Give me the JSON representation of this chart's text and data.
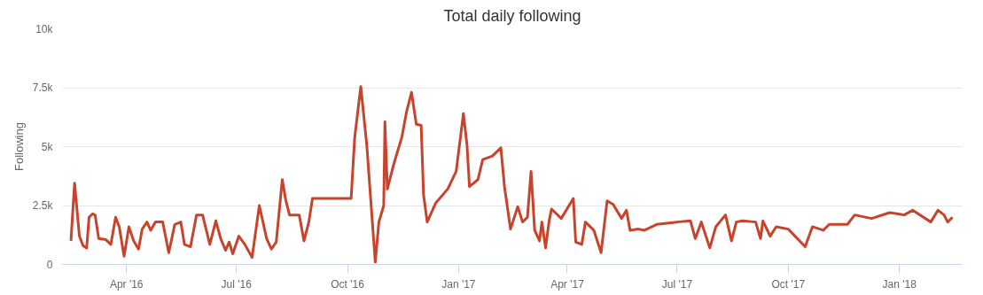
{
  "chart_data": {
    "type": "line",
    "title": "Total daily following",
    "ylabel": "Following",
    "x": [
      "2016-02-15",
      "2016-02-18",
      "2016-02-22",
      "2016-02-25",
      "2016-02-28",
      "2016-03-01",
      "2016-03-04",
      "2016-03-06",
      "2016-03-09",
      "2016-03-15",
      "2016-03-19",
      "2016-03-23",
      "2016-03-26",
      "2016-03-30",
      "2016-04-03",
      "2016-04-07",
      "2016-04-11",
      "2016-04-14",
      "2016-04-18",
      "2016-04-21",
      "2016-04-25",
      "2016-05-01",
      "2016-05-06",
      "2016-05-11",
      "2016-05-16",
      "2016-05-19",
      "2016-05-24",
      "2016-05-29",
      "2016-06-03",
      "2016-06-09",
      "2016-06-14",
      "2016-06-18",
      "2016-06-22",
      "2016-06-25",
      "2016-06-28",
      "2016-07-03",
      "2016-07-08",
      "2016-07-14",
      "2016-07-20",
      "2016-07-26",
      "2016-07-30",
      "2016-08-03",
      "2016-08-08",
      "2016-08-11",
      "2016-08-14",
      "2016-08-22",
      "2016-08-26",
      "2016-08-30",
      "2016-09-02",
      "2016-10-04",
      "2016-10-07",
      "2016-10-12",
      "2016-10-17",
      "2016-10-24",
      "2016-10-27",
      "2016-10-31",
      "2016-11-01",
      "2016-11-03",
      "2016-11-08",
      "2016-11-15",
      "2016-11-19",
      "2016-11-23",
      "2016-11-27",
      "2016-12-01",
      "2016-12-03",
      "2016-12-06",
      "2016-12-13",
      "2016-12-23",
      "2016-12-30",
      "2017-01-05",
      "2017-01-08",
      "2017-01-10",
      "2017-01-17",
      "2017-01-21",
      "2017-01-29",
      "2017-02-05",
      "2017-02-08",
      "2017-02-13",
      "2017-02-19",
      "2017-02-23",
      "2017-02-27",
      "2017-03-02",
      "2017-03-05",
      "2017-03-09",
      "2017-03-11",
      "2017-03-14",
      "2017-03-17",
      "2017-03-19",
      "2017-03-27",
      "2017-04-06",
      "2017-04-08",
      "2017-04-13",
      "2017-04-16",
      "2017-04-23",
      "2017-04-29",
      "2017-05-04",
      "2017-05-09",
      "2017-05-16",
      "2017-05-20",
      "2017-05-23",
      "2017-05-30",
      "2017-06-04",
      "2017-06-14",
      "2017-07-01",
      "2017-07-12",
      "2017-07-16",
      "2017-07-21",
      "2017-07-28",
      "2017-08-02",
      "2017-08-10",
      "2017-08-15",
      "2017-08-19",
      "2017-08-24",
      "2017-09-04",
      "2017-09-08",
      "2017-09-10",
      "2017-09-16",
      "2017-09-21",
      "2017-10-01",
      "2017-10-15",
      "2017-10-21",
      "2017-10-30",
      "2017-11-04",
      "2017-11-19",
      "2017-11-25",
      "2017-12-09",
      "2017-12-24",
      "2018-01-05",
      "2018-01-12",
      "2018-01-27",
      "2018-02-02",
      "2018-02-07",
      "2018-02-10",
      "2018-02-14"
    ],
    "series": [
      {
        "color": "#c8432b",
        "values": [
          1000,
          3450,
          1200,
          800,
          700,
          2000,
          2150,
          2100,
          1100,
          1050,
          850,
          2000,
          1600,
          350,
          1600,
          1000,
          650,
          1500,
          1800,
          1450,
          1800,
          1800,
          500,
          1700,
          1800,
          850,
          750,
          2100,
          2100,
          850,
          1850,
          1100,
          600,
          950,
          450,
          1200,
          850,
          300,
          2500,
          1100,
          650,
          950,
          3600,
          2700,
          2100,
          2100,
          1000,
          1800,
          2800,
          2800,
          5400,
          7550,
          5050,
          100,
          1800,
          2500,
          6050,
          3200,
          4200,
          5400,
          6500,
          7300,
          5950,
          5900,
          2950,
          1800,
          2600,
          3200,
          3950,
          6400,
          5050,
          3300,
          3600,
          4450,
          4600,
          4950,
          3300,
          1500,
          2450,
          1800,
          2000,
          3950,
          1450,
          1000,
          1800,
          700,
          1850,
          2350,
          1950,
          2800,
          950,
          850,
          1800,
          1450,
          500,
          2700,
          2550,
          1950,
          2300,
          1450,
          1500,
          1450,
          1700,
          1800,
          1850,
          1100,
          1800,
          700,
          1600,
          2100,
          1000,
          1800,
          1850,
          1800,
          1100,
          1850,
          1200,
          1600,
          1500,
          750,
          1600,
          1450,
          1700,
          1700,
          2100,
          1950,
          2200,
          2100,
          2300,
          1800,
          2300,
          2100,
          1800,
          2000
        ]
      }
    ],
    "xlim": [
      "2016-02-08",
      "2018-02-22"
    ],
    "xticks": [
      {
        "value": "2016-04-01",
        "label": "Apr '16"
      },
      {
        "value": "2016-07-01",
        "label": "Jul '16"
      },
      {
        "value": "2016-10-01",
        "label": "Oct '16"
      },
      {
        "value": "2017-01-01",
        "label": "Jan '17"
      },
      {
        "value": "2017-04-01",
        "label": "Apr '17"
      },
      {
        "value": "2017-07-01",
        "label": "Jul '17"
      },
      {
        "value": "2017-10-01",
        "label": "Oct '17"
      },
      {
        "value": "2018-01-01",
        "label": "Jan '18"
      }
    ],
    "ylim": [
      0,
      10000
    ],
    "yticks": [
      0,
      {
        "value": 2500,
        "label": "2.5k"
      },
      {
        "value": 5000,
        "label": "5k"
      },
      {
        "value": 7500,
        "label": "7.5k"
      },
      {
        "value": 10000,
        "label": "10k"
      }
    ],
    "grid": "y",
    "marker": "none",
    "line_style": "solid"
  }
}
